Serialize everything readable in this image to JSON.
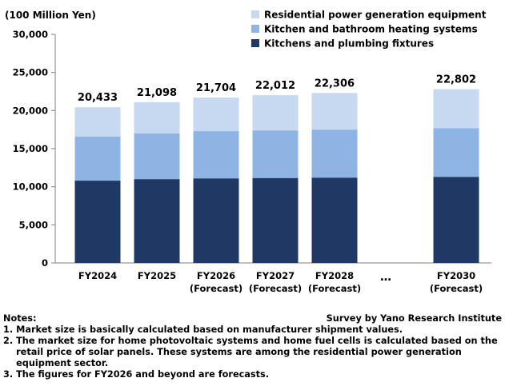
{
  "chart_data": {
    "type": "bar",
    "stacked": true,
    "unit_label": "(100 Million Yen)",
    "categories": [
      {
        "lines": [
          "FY2024"
        ],
        "total": "20,433"
      },
      {
        "lines": [
          "FY2025"
        ],
        "total": "21,098"
      },
      {
        "lines": [
          "FY2026",
          "(Forecast)"
        ],
        "total": "21,704"
      },
      {
        "lines": [
          "FY2027",
          "(Forecast)"
        ],
        "total": "22,012"
      },
      {
        "lines": [
          "FY2028",
          "(Forecast)"
        ],
        "total": "22,306"
      },
      {
        "lines": [
          "…"
        ],
        "total": null,
        "gap": true
      },
      {
        "lines": [
          "FY2030",
          "(Forecast)"
        ],
        "total": "22,802"
      }
    ],
    "series": [
      {
        "name": "Kitchens and plumbing fixtures",
        "color": "#1f3864",
        "values": [
          10800,
          11000,
          11100,
          11150,
          11200,
          null,
          11300
        ]
      },
      {
        "name": "Kitchen and bathroom heating systems",
        "color": "#8eb4e3",
        "values": [
          5800,
          6000,
          6200,
          6250,
          6300,
          null,
          6400
        ]
      },
      {
        "name": "Residential power generation equipment",
        "color": "#c6d9f1",
        "values": [
          3833,
          4098,
          4404,
          4612,
          4806,
          null,
          5102
        ]
      }
    ],
    "legend_order": [
      2,
      1,
      0
    ],
    "ylim": [
      0,
      30000
    ],
    "yticks": [
      0,
      5000,
      10000,
      15000,
      20000,
      25000,
      30000
    ],
    "ytick_labels": [
      "0",
      "5,000",
      "10,000",
      "15,000",
      "20,000",
      "25,000",
      "30,000"
    ],
    "grid": false,
    "legend_position": "top-right"
  },
  "notes": {
    "heading": "Notes:",
    "items": [
      {
        "num": "1. ",
        "text": "Market size is basically calculated based on manufacturer shipment values."
      },
      {
        "num": "2. ",
        "text": "The market size for home photovoltaic systems and home fuel cells is calculated based on the retail price of solar panels. These systems are among the residential power generation equipment sector."
      },
      {
        "num": "3. ",
        "text": "The figures for FY2026 and beyond are forecasts."
      }
    ]
  },
  "source": "Survey by Yano Research Institute"
}
